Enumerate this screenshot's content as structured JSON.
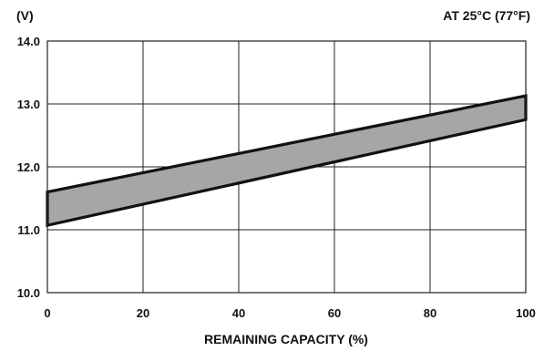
{
  "chart_data": {
    "type": "area",
    "title": "",
    "ylabel_unit": "(V)",
    "annotation": "AT 25°C (77°F)",
    "xlabel": "REMAINING CAPACITY (%)",
    "xlim": [
      0,
      100
    ],
    "ylim": [
      10.0,
      14.0
    ],
    "x_ticks": [
      0,
      20,
      40,
      60,
      80,
      100
    ],
    "y_ticks": [
      "10.0",
      "11.0",
      "12.0",
      "13.0",
      "14.0"
    ],
    "grid": true,
    "band": {
      "x": [
        0,
        100
      ],
      "upper": [
        11.6,
        13.13
      ],
      "lower": [
        11.07,
        12.75
      ]
    },
    "colors": {
      "band_fill": "#a6a6a6",
      "band_edge": "#111111",
      "grid": "#222222"
    }
  }
}
